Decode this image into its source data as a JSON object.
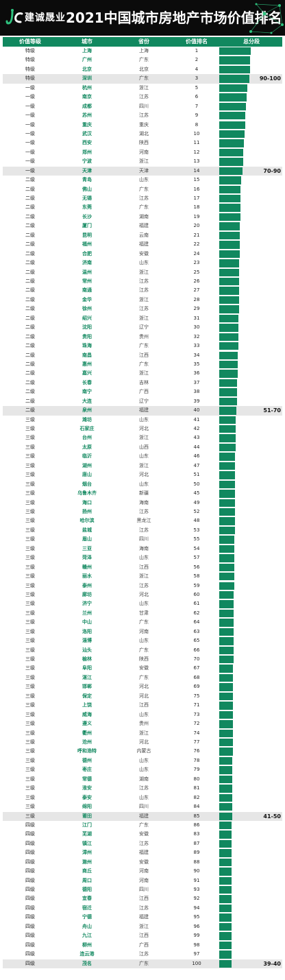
{
  "header": {
    "logo_text": "建诚晟业",
    "title": "2021中国城市房地产市场价值排名"
  },
  "columns": {
    "tier": "价值等级",
    "city": "城市",
    "province": "省份",
    "rank": "价值排名",
    "score_band": "总分段"
  },
  "chart_data": {
    "type": "table",
    "score_band_ranges": [
      "90-100",
      "70-90",
      "51-70",
      "41-50",
      "39-40"
    ],
    "colors": {
      "bar": "#11885f",
      "header": "#11885f",
      "band_row": "#e6e6e6"
    },
    "rows": [
      {
        "tier": "特级",
        "city": "上海",
        "province": "上海",
        "rank": "1",
        "score": 100
      },
      {
        "tier": "特级",
        "city": "广州",
        "province": "广东",
        "rank": "2",
        "score": 98
      },
      {
        "tier": "特级",
        "city": "北京",
        "province": "北京",
        "rank": "4",
        "score": 97
      },
      {
        "tier": "特级",
        "city": "深圳",
        "province": "广东",
        "rank": "3",
        "score": 96,
        "band": "90-100"
      },
      {
        "tier": "一级",
        "city": "杭州",
        "province": "浙江",
        "rank": "5",
        "score": 89
      },
      {
        "tier": "一级",
        "city": "南京",
        "province": "江苏",
        "rank": "6",
        "score": 86
      },
      {
        "tier": "一级",
        "city": "成都",
        "province": "四川",
        "rank": "7",
        "score": 84
      },
      {
        "tier": "一级",
        "city": "苏州",
        "province": "江苏",
        "rank": "9",
        "score": 83
      },
      {
        "tier": "一级",
        "city": "重庆",
        "province": "重庆",
        "rank": "8",
        "score": 82
      },
      {
        "tier": "一级",
        "city": "武汉",
        "province": "湖北",
        "rank": "10",
        "score": 80
      },
      {
        "tier": "一级",
        "city": "西安",
        "province": "陕西",
        "rank": "11",
        "score": 78
      },
      {
        "tier": "一级",
        "city": "郑州",
        "province": "河南",
        "rank": "12",
        "score": 76
      },
      {
        "tier": "一级",
        "city": "宁波",
        "province": "浙江",
        "rank": "13",
        "score": 75
      },
      {
        "tier": "一级",
        "city": "天津",
        "province": "天津",
        "rank": "14",
        "score": 73,
        "band": "70-90"
      },
      {
        "tier": "二级",
        "city": "青岛",
        "province": "山东",
        "rank": "15",
        "score": 69
      },
      {
        "tier": "二级",
        "city": "佛山",
        "province": "广东",
        "rank": "16",
        "score": 68
      },
      {
        "tier": "二级",
        "city": "无锡",
        "province": "江苏",
        "rank": "17",
        "score": 68
      },
      {
        "tier": "二级",
        "city": "东莞",
        "province": "广东",
        "rank": "18",
        "score": 67
      },
      {
        "tier": "二级",
        "city": "长沙",
        "province": "湖南",
        "rank": "19",
        "score": 67
      },
      {
        "tier": "二级",
        "city": "厦门",
        "province": "福建",
        "rank": "20",
        "score": 66
      },
      {
        "tier": "二级",
        "city": "昆明",
        "province": "云南",
        "rank": "21",
        "score": 66
      },
      {
        "tier": "二级",
        "city": "福州",
        "province": "福建",
        "rank": "22",
        "score": 65
      },
      {
        "tier": "二级",
        "city": "合肥",
        "province": "安徽",
        "rank": "24",
        "score": 65
      },
      {
        "tier": "二级",
        "city": "济南",
        "province": "山东",
        "rank": "23",
        "score": 64
      },
      {
        "tier": "二级",
        "city": "温州",
        "province": "浙江",
        "rank": "25",
        "score": 64
      },
      {
        "tier": "二级",
        "city": "常州",
        "province": "江苏",
        "rank": "26",
        "score": 63
      },
      {
        "tier": "二级",
        "city": "南通",
        "province": "江苏",
        "rank": "27",
        "score": 63
      },
      {
        "tier": "二级",
        "city": "金华",
        "province": "浙江",
        "rank": "28",
        "score": 62
      },
      {
        "tier": "二级",
        "city": "徐州",
        "province": "江苏",
        "rank": "29",
        "score": 62
      },
      {
        "tier": "二级",
        "city": "绍兴",
        "province": "浙江",
        "rank": "31",
        "score": 61
      },
      {
        "tier": "二级",
        "city": "沈阳",
        "province": "辽宁",
        "rank": "30",
        "score": 61
      },
      {
        "tier": "二级",
        "city": "贵阳",
        "province": "贵州",
        "rank": "32",
        "score": 60
      },
      {
        "tier": "二级",
        "city": "珠海",
        "province": "广东",
        "rank": "33",
        "score": 60
      },
      {
        "tier": "二级",
        "city": "南昌",
        "province": "江西",
        "rank": "34",
        "score": 59
      },
      {
        "tier": "二级",
        "city": "惠州",
        "province": "广东",
        "rank": "35",
        "score": 59
      },
      {
        "tier": "二级",
        "city": "嘉兴",
        "province": "浙江",
        "rank": "36",
        "score": 58
      },
      {
        "tier": "二级",
        "city": "长春",
        "province": "吉林",
        "rank": "37",
        "score": 57
      },
      {
        "tier": "二级",
        "city": "南宁",
        "province": "广西",
        "rank": "38",
        "score": 57
      },
      {
        "tier": "二级",
        "city": "大连",
        "province": "辽宁",
        "rank": "39",
        "score": 56
      },
      {
        "tier": "二级",
        "city": "泉州",
        "province": "福建",
        "rank": "40",
        "score": 55,
        "band": "51-70"
      },
      {
        "tier": "三级",
        "city": "潍坊",
        "province": "山东",
        "rank": "41",
        "score": 53
      },
      {
        "tier": "三级",
        "city": "石家庄",
        "province": "河北",
        "rank": "42",
        "score": 53
      },
      {
        "tier": "三级",
        "city": "台州",
        "province": "浙江",
        "rank": "43",
        "score": 52
      },
      {
        "tier": "三级",
        "city": "太原",
        "province": "山西",
        "rank": "44",
        "score": 52
      },
      {
        "tier": "三级",
        "city": "临沂",
        "province": "山东",
        "rank": "46",
        "score": 51
      },
      {
        "tier": "三级",
        "city": "湖州",
        "province": "浙江",
        "rank": "47",
        "score": 51
      },
      {
        "tier": "三级",
        "city": "唐山",
        "province": "河北",
        "rank": "51",
        "score": 51
      },
      {
        "tier": "三级",
        "city": "烟台",
        "province": "山东",
        "rank": "50",
        "score": 50
      },
      {
        "tier": "三级",
        "city": "乌鲁木齐",
        "province": "新疆",
        "rank": "45",
        "score": 50
      },
      {
        "tier": "三级",
        "city": "海口",
        "province": "海南",
        "rank": "49",
        "score": 50
      },
      {
        "tier": "三级",
        "city": "扬州",
        "province": "江苏",
        "rank": "52",
        "score": 49
      },
      {
        "tier": "三级",
        "city": "哈尔滨",
        "province": "黑龙江",
        "rank": "48",
        "score": 49
      },
      {
        "tier": "三级",
        "city": "盐城",
        "province": "江苏",
        "rank": "53",
        "score": 49
      },
      {
        "tier": "三级",
        "city": "眉山",
        "province": "四川",
        "rank": "55",
        "score": 48
      },
      {
        "tier": "三级",
        "city": "三亚",
        "province": "海南",
        "rank": "54",
        "score": 48
      },
      {
        "tier": "三级",
        "city": "菏泽",
        "province": "山东",
        "rank": "57",
        "score": 48
      },
      {
        "tier": "三级",
        "city": "赣州",
        "province": "江西",
        "rank": "56",
        "score": 47
      },
      {
        "tier": "三级",
        "city": "丽水",
        "province": "浙江",
        "rank": "58",
        "score": 47
      },
      {
        "tier": "三级",
        "city": "泰州",
        "province": "江苏",
        "rank": "59",
        "score": 47
      },
      {
        "tier": "三级",
        "city": "廊坊",
        "province": "河北",
        "rank": "60",
        "score": 46
      },
      {
        "tier": "三级",
        "city": "济宁",
        "province": "山东",
        "rank": "61",
        "score": 46
      },
      {
        "tier": "三级",
        "city": "兰州",
        "province": "甘肃",
        "rank": "62",
        "score": 46
      },
      {
        "tier": "三级",
        "city": "中山",
        "province": "广东",
        "rank": "64",
        "score": 46
      },
      {
        "tier": "三级",
        "city": "洛阳",
        "province": "河南",
        "rank": "63",
        "score": 45
      },
      {
        "tier": "三级",
        "city": "淄博",
        "province": "山东",
        "rank": "65",
        "score": 45
      },
      {
        "tier": "三级",
        "city": "汕头",
        "province": "广东",
        "rank": "66",
        "score": 45
      },
      {
        "tier": "三级",
        "city": "榆林",
        "province": "陕西",
        "rank": "70",
        "score": 45
      },
      {
        "tier": "三级",
        "city": "阜阳",
        "province": "安徽",
        "rank": "67",
        "score": 44
      },
      {
        "tier": "三级",
        "city": "湛江",
        "province": "广东",
        "rank": "68",
        "score": 44
      },
      {
        "tier": "三级",
        "city": "邯郸",
        "province": "河北",
        "rank": "69",
        "score": 44
      },
      {
        "tier": "三级",
        "city": "保定",
        "province": "河北",
        "rank": "75",
        "score": 44
      },
      {
        "tier": "三级",
        "city": "上饶",
        "province": "江西",
        "rank": "71",
        "score": 44
      },
      {
        "tier": "三级",
        "city": "威海",
        "province": "山东",
        "rank": "73",
        "score": 43
      },
      {
        "tier": "三级",
        "city": "遵义",
        "province": "贵州",
        "rank": "72",
        "score": 43
      },
      {
        "tier": "三级",
        "city": "衢州",
        "province": "浙江",
        "rank": "74",
        "score": 43
      },
      {
        "tier": "三级",
        "city": "沧州",
        "province": "河北",
        "rank": "77",
        "score": 43
      },
      {
        "tier": "三级",
        "city": "呼和浩特",
        "province": "内蒙古",
        "rank": "76",
        "score": 43
      },
      {
        "tier": "三级",
        "city": "德州",
        "province": "山东",
        "rank": "78",
        "score": 42
      },
      {
        "tier": "三级",
        "city": "枣庄",
        "province": "山东",
        "rank": "79",
        "score": 42
      },
      {
        "tier": "三级",
        "city": "常德",
        "province": "湖南",
        "rank": "80",
        "score": 42
      },
      {
        "tier": "三级",
        "city": "淮安",
        "province": "江苏",
        "rank": "81",
        "score": 42
      },
      {
        "tier": "三级",
        "city": "泰安",
        "province": "山东",
        "rank": "82",
        "score": 42
      },
      {
        "tier": "三级",
        "city": "绵阳",
        "province": "四川",
        "rank": "84",
        "score": 41
      },
      {
        "tier": "三级",
        "city": "莆田",
        "province": "福建",
        "rank": "85",
        "score": 41,
        "band": "41-50"
      },
      {
        "tier": "四级",
        "city": "江门",
        "province": "广东",
        "rank": "86",
        "score": 40
      },
      {
        "tier": "四级",
        "city": "芜湖",
        "province": "安徽",
        "rank": "83",
        "score": 40
      },
      {
        "tier": "四级",
        "city": "镇江",
        "province": "江苏",
        "rank": "87",
        "score": 40
      },
      {
        "tier": "四级",
        "city": "漳州",
        "province": "福建",
        "rank": "89",
        "score": 40
      },
      {
        "tier": "四级",
        "city": "滁州",
        "province": "安徽",
        "rank": "88",
        "score": 40
      },
      {
        "tier": "四级",
        "city": "商丘",
        "province": "河南",
        "rank": "90",
        "score": 40
      },
      {
        "tier": "四级",
        "city": "周口",
        "province": "河南",
        "rank": "91",
        "score": 40
      },
      {
        "tier": "四级",
        "city": "德阳",
        "province": "四川",
        "rank": "93",
        "score": 39.8
      },
      {
        "tier": "四级",
        "city": "宜春",
        "province": "江西",
        "rank": "92",
        "score": 39.8
      },
      {
        "tier": "四级",
        "city": "宿迁",
        "province": "江苏",
        "rank": "94",
        "score": 39.7
      },
      {
        "tier": "四级",
        "city": "宁德",
        "province": "福建",
        "rank": "95",
        "score": 39.7
      },
      {
        "tier": "四级",
        "city": "舟山",
        "province": "浙江",
        "rank": "96",
        "score": 39.6
      },
      {
        "tier": "四级",
        "city": "九江",
        "province": "江西",
        "rank": "99",
        "score": 39.6
      },
      {
        "tier": "四级",
        "city": "柳州",
        "province": "广西",
        "rank": "98",
        "score": 39.5
      },
      {
        "tier": "四级",
        "city": "连云港",
        "province": "江苏",
        "rank": "97",
        "score": 39.5
      },
      {
        "tier": "四级",
        "city": "茂名",
        "province": "广东",
        "rank": "100",
        "score": 39.4,
        "band": "39-40"
      }
    ]
  }
}
